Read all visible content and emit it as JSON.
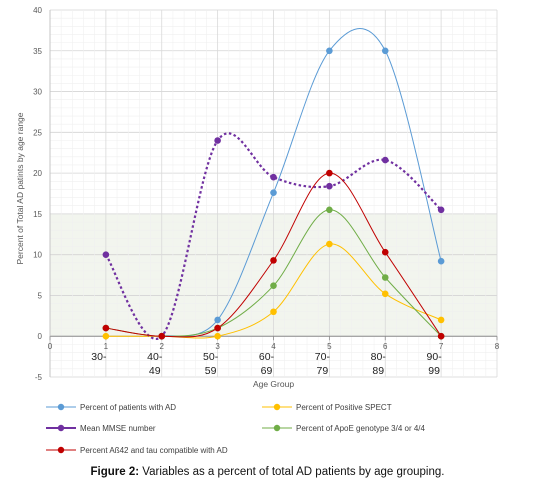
{
  "caption": {
    "label": "Figure 2:",
    "text": " Variables as a percent of total AD patients by age grouping."
  },
  "chart_data": {
    "type": "line",
    "smooth": true,
    "xlabel": "Age Group",
    "ylabel": "Percent of Total AD patints by age range",
    "xlim": [
      0,
      8
    ],
    "ylim": [
      -5,
      40
    ],
    "x_ticks": [
      "0",
      "1",
      "2",
      "3",
      "4",
      "5",
      "6",
      "7",
      "8"
    ],
    "y_ticks": [
      "-5",
      "0",
      "5",
      "10",
      "15",
      "20",
      "25",
      "30",
      "35",
      "40"
    ],
    "categories": [
      {
        "x": 1,
        "label": "30-"
      },
      {
        "x": 2,
        "label": "40-\n49"
      },
      {
        "x": 3,
        "label": "50-\n59"
      },
      {
        "x": 4,
        "label": "60-\n69"
      },
      {
        "x": 5,
        "label": "70-\n79"
      },
      {
        "x": 6,
        "label": "80-\n89"
      },
      {
        "x": 7,
        "label": "90-\n99"
      }
    ],
    "grid": true,
    "legend_position": "bottom",
    "series": [
      {
        "name": "Percent of patients with AD",
        "color": "#5b9bd5",
        "dashed": false,
        "x": [
          2,
          3,
          4,
          5,
          6,
          7
        ],
        "y": [
          0,
          2,
          17.6,
          35,
          35,
          9.2
        ]
      },
      {
        "name": "Percent of Positive SPECT",
        "color": "#ffc000",
        "dashed": false,
        "x": [
          1,
          2,
          3,
          4,
          5,
          6,
          7
        ],
        "y": [
          0,
          0,
          0,
          3,
          11.3,
          5.2,
          2
        ]
      },
      {
        "name": "Mean MMSE number",
        "color": "#7030a0",
        "dashed": true,
        "x": [
          1,
          2,
          3,
          4,
          5,
          6,
          7
        ],
        "y": [
          10,
          0,
          24,
          19.5,
          18.4,
          21.6,
          15.5
        ]
      },
      {
        "name": "Percent of ApoE genotype 3/4 or 4/4",
        "color": "#70ad47",
        "dashed": false,
        "x": [
          1,
          2,
          3,
          4,
          5,
          6,
          7
        ],
        "y": [
          1,
          0,
          1,
          6.2,
          15.5,
          7.2,
          0
        ]
      },
      {
        "name": "Percent Aß42 and tau compatible with AD",
        "color": "#c00000",
        "dashed": false,
        "x": [
          1,
          2,
          3,
          4,
          5,
          6,
          7
        ],
        "y": [
          1,
          0,
          1,
          9.3,
          20,
          10.3,
          0
        ]
      }
    ]
  }
}
